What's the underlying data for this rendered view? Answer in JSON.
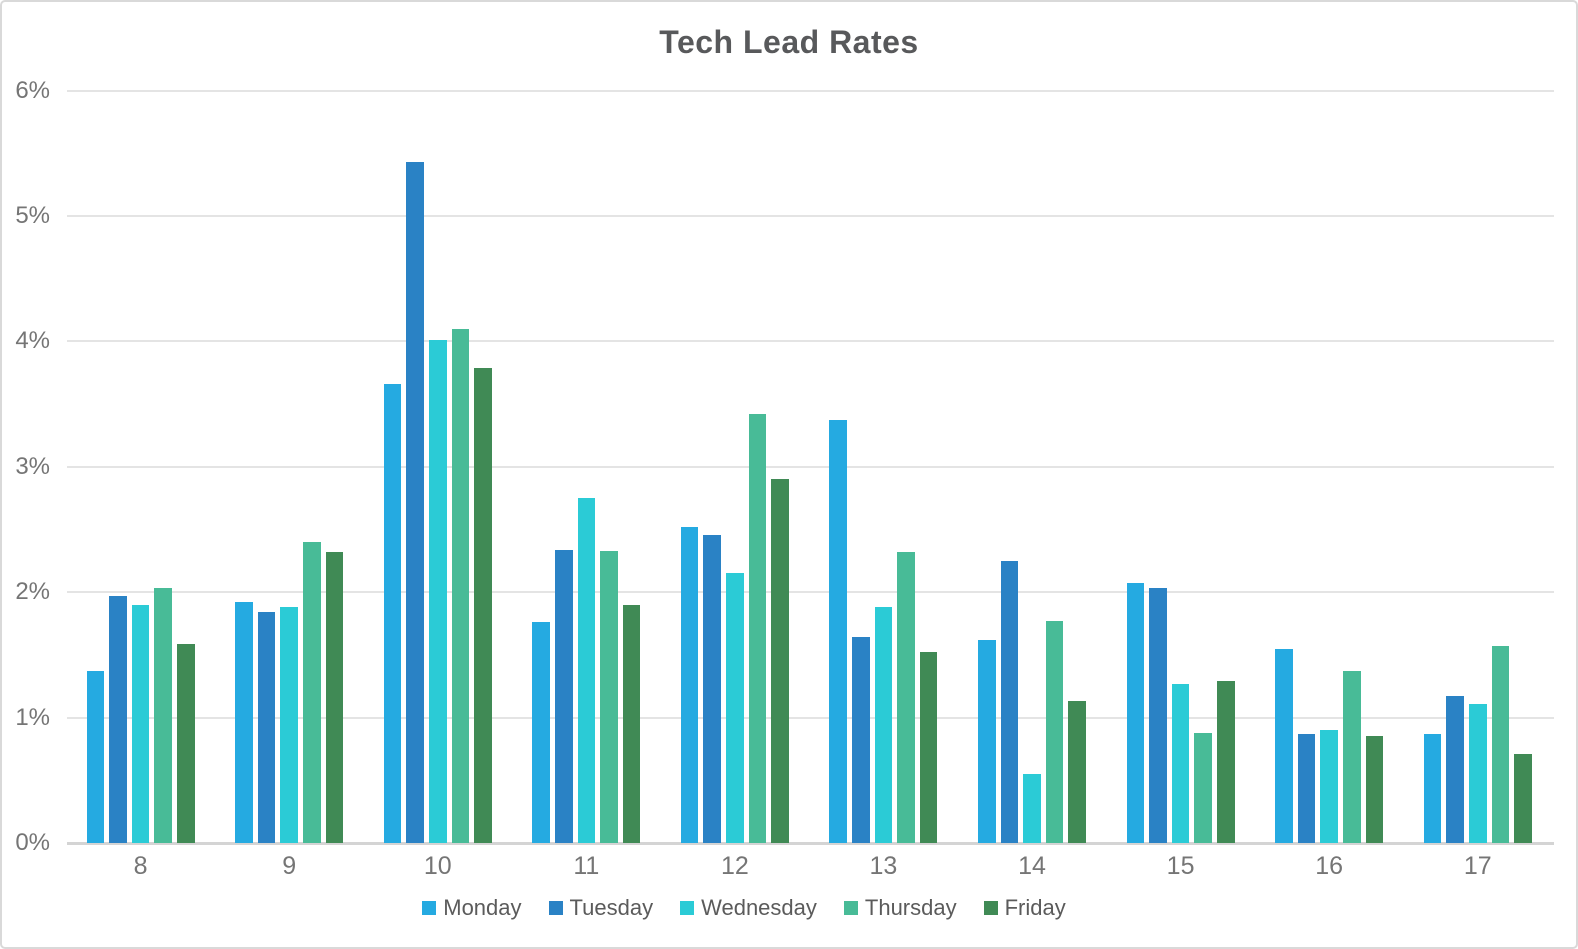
{
  "chart_data": {
    "type": "bar",
    "title": "Tech Lead Rates",
    "categories": [
      "8",
      "9",
      "10",
      "11",
      "12",
      "13",
      "14",
      "15",
      "16",
      "17"
    ],
    "series": [
      {
        "name": "Monday",
        "color": "#25aae1",
        "values": [
          1.37,
          1.92,
          3.66,
          1.76,
          2.52,
          3.37,
          1.62,
          2.07,
          1.55,
          0.87
        ]
      },
      {
        "name": "Tuesday",
        "color": "#2a82c5",
        "values": [
          1.97,
          1.84,
          5.43,
          2.34,
          2.46,
          1.64,
          2.25,
          2.03,
          0.87,
          1.17
        ]
      },
      {
        "name": "Wednesday",
        "color": "#2bcbd6",
        "values": [
          1.9,
          1.88,
          4.01,
          2.75,
          2.15,
          1.88,
          0.55,
          1.27,
          0.9,
          1.11
        ]
      },
      {
        "name": "Thursday",
        "color": "#48bb97",
        "values": [
          2.03,
          2.4,
          4.1,
          2.33,
          3.42,
          2.32,
          1.77,
          0.88,
          1.37,
          1.57
        ]
      },
      {
        "name": "Friday",
        "color": "#408a55",
        "values": [
          1.59,
          2.32,
          3.79,
          1.9,
          2.9,
          1.52,
          1.13,
          1.29,
          0.85,
          0.71
        ]
      }
    ],
    "xlabel": "",
    "ylabel": "",
    "ylim": [
      0,
      6
    ],
    "y_tick_step": 1,
    "y_tick_labels": [
      "0%",
      "1%",
      "2%",
      "3%",
      "4%",
      "5%",
      "6%"
    ],
    "grid": true,
    "legend_position": "bottom"
  }
}
